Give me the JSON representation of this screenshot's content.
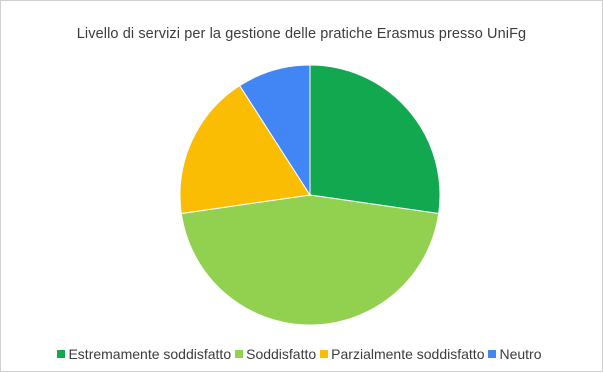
{
  "chart_data": {
    "type": "pie",
    "title": "Livello di servizi per la gestione delle pratiche Erasmus presso UniFg",
    "categories": [
      "Estremamente soddisfatto",
      "Soddisfatto",
      "Parzialmente soddisfatto",
      "Neutro"
    ],
    "values": [
      27.3,
      45.5,
      18.2,
      9.1
    ],
    "colors": [
      "#11a84f",
      "#92d050",
      "#fbbc04",
      "#4285f4"
    ],
    "legend_position": "bottom",
    "start_angle": "top, clockwise"
  }
}
